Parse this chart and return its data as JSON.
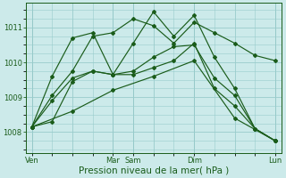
{
  "background_color": "#cceaea",
  "grid_color": "#99cccc",
  "line_color": "#1a5c1a",
  "xlabel": "Pression niveau de la mer( hPa )",
  "xlabel_fontsize": 7.5,
  "yticks": [
    1008,
    1009,
    1010,
    1011
  ],
  "ylim": [
    1007.4,
    1011.7
  ],
  "xlim": [
    -0.3,
    12.3
  ],
  "xtick_labels": [
    "Ven",
    "",
    "Mar",
    "Sam",
    "",
    "Dim",
    "",
    "Lun"
  ],
  "xtick_positions": [
    0,
    2,
    4,
    5,
    6,
    8,
    10,
    12
  ],
  "series": [
    {
      "x": [
        0,
        1,
        2,
        3,
        4,
        5,
        6,
        7,
        8,
        9,
        10,
        11,
        12
      ],
      "y": [
        1008.15,
        1009.05,
        1009.75,
        1010.75,
        1010.85,
        1011.25,
        1011.05,
        1010.55,
        1011.15,
        1010.85,
        1010.55,
        1010.2,
        1010.05
      ]
    },
    {
      "x": [
        0,
        1,
        2,
        3,
        4,
        5,
        6,
        7,
        8,
        9,
        10,
        11,
        12
      ],
      "y": [
        1008.15,
        1009.6,
        1010.7,
        1010.85,
        1009.65,
        1010.55,
        1011.45,
        1010.75,
        1011.35,
        1010.15,
        1009.25,
        1008.1,
        1007.75
      ]
    },
    {
      "x": [
        0,
        1,
        2,
        3,
        4,
        5,
        6,
        7,
        8,
        9,
        10,
        11,
        12
      ],
      "y": [
        1008.15,
        1008.9,
        1009.55,
        1009.75,
        1009.65,
        1009.75,
        1010.15,
        1010.45,
        1010.5,
        1009.55,
        1009.05,
        1008.1,
        1007.75
      ]
    },
    {
      "x": [
        0,
        1,
        2,
        3,
        4,
        5,
        6,
        7,
        8,
        9,
        10,
        11,
        12
      ],
      "y": [
        1008.15,
        1008.3,
        1009.45,
        1009.75,
        1009.65,
        1009.65,
        1009.85,
        1010.05,
        1010.55,
        1009.25,
        1008.75,
        1008.1,
        1007.75
      ]
    },
    {
      "x": [
        0,
        2,
        4,
        6,
        8,
        10,
        12
      ],
      "y": [
        1008.15,
        1008.6,
        1009.2,
        1009.6,
        1010.05,
        1008.4,
        1007.75
      ]
    }
  ]
}
